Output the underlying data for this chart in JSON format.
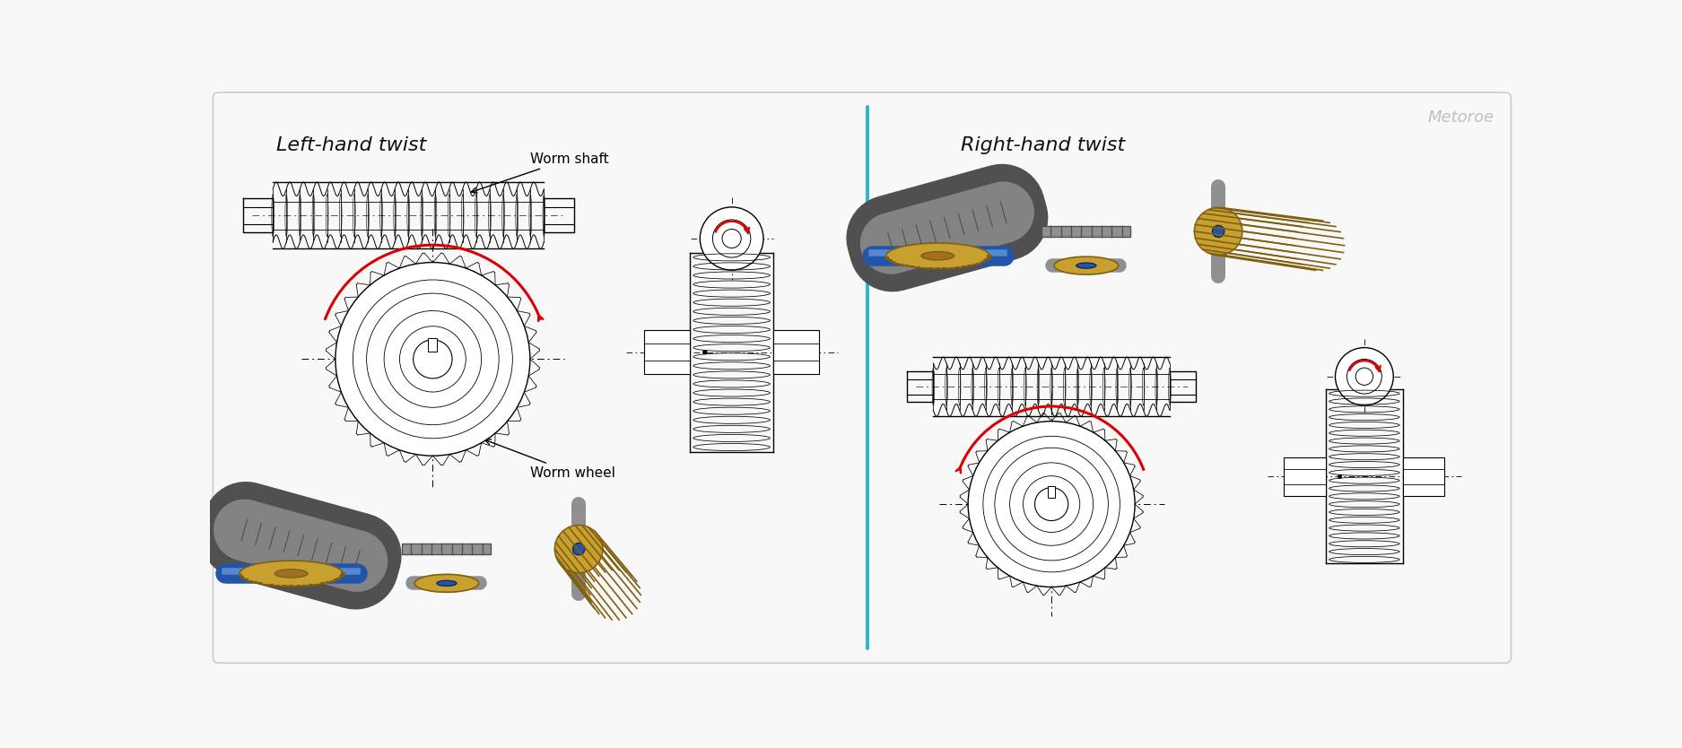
{
  "background_color": "#f8f8f8",
  "border_color": "#cccccc",
  "divider_color": "#29b8c8",
  "left_title": "Left-hand twist",
  "right_title": "Right-hand twist",
  "watermark": "Metoroe",
  "watermark_color": "#c0c0c0",
  "annotation_worm_shaft": "Worm shaft",
  "annotation_worm_wheel": "Worm wheel",
  "title_fontsize": 16,
  "annotation_fontsize": 11,
  "watermark_fontsize": 13,
  "fig_width": 18.75,
  "fig_height": 8.34,
  "dpi": 100,
  "gold": "#c8a030",
  "gold_dark": "#806010",
  "gold_mid": "#a07020",
  "gray_light": "#d0d0d0",
  "gray_mid": "#909090",
  "gray_dark": "#505050",
  "blue_shaft": "#2255aa",
  "blue_shaft_dark": "#112255",
  "black": "#111111",
  "red": "#dd0000"
}
